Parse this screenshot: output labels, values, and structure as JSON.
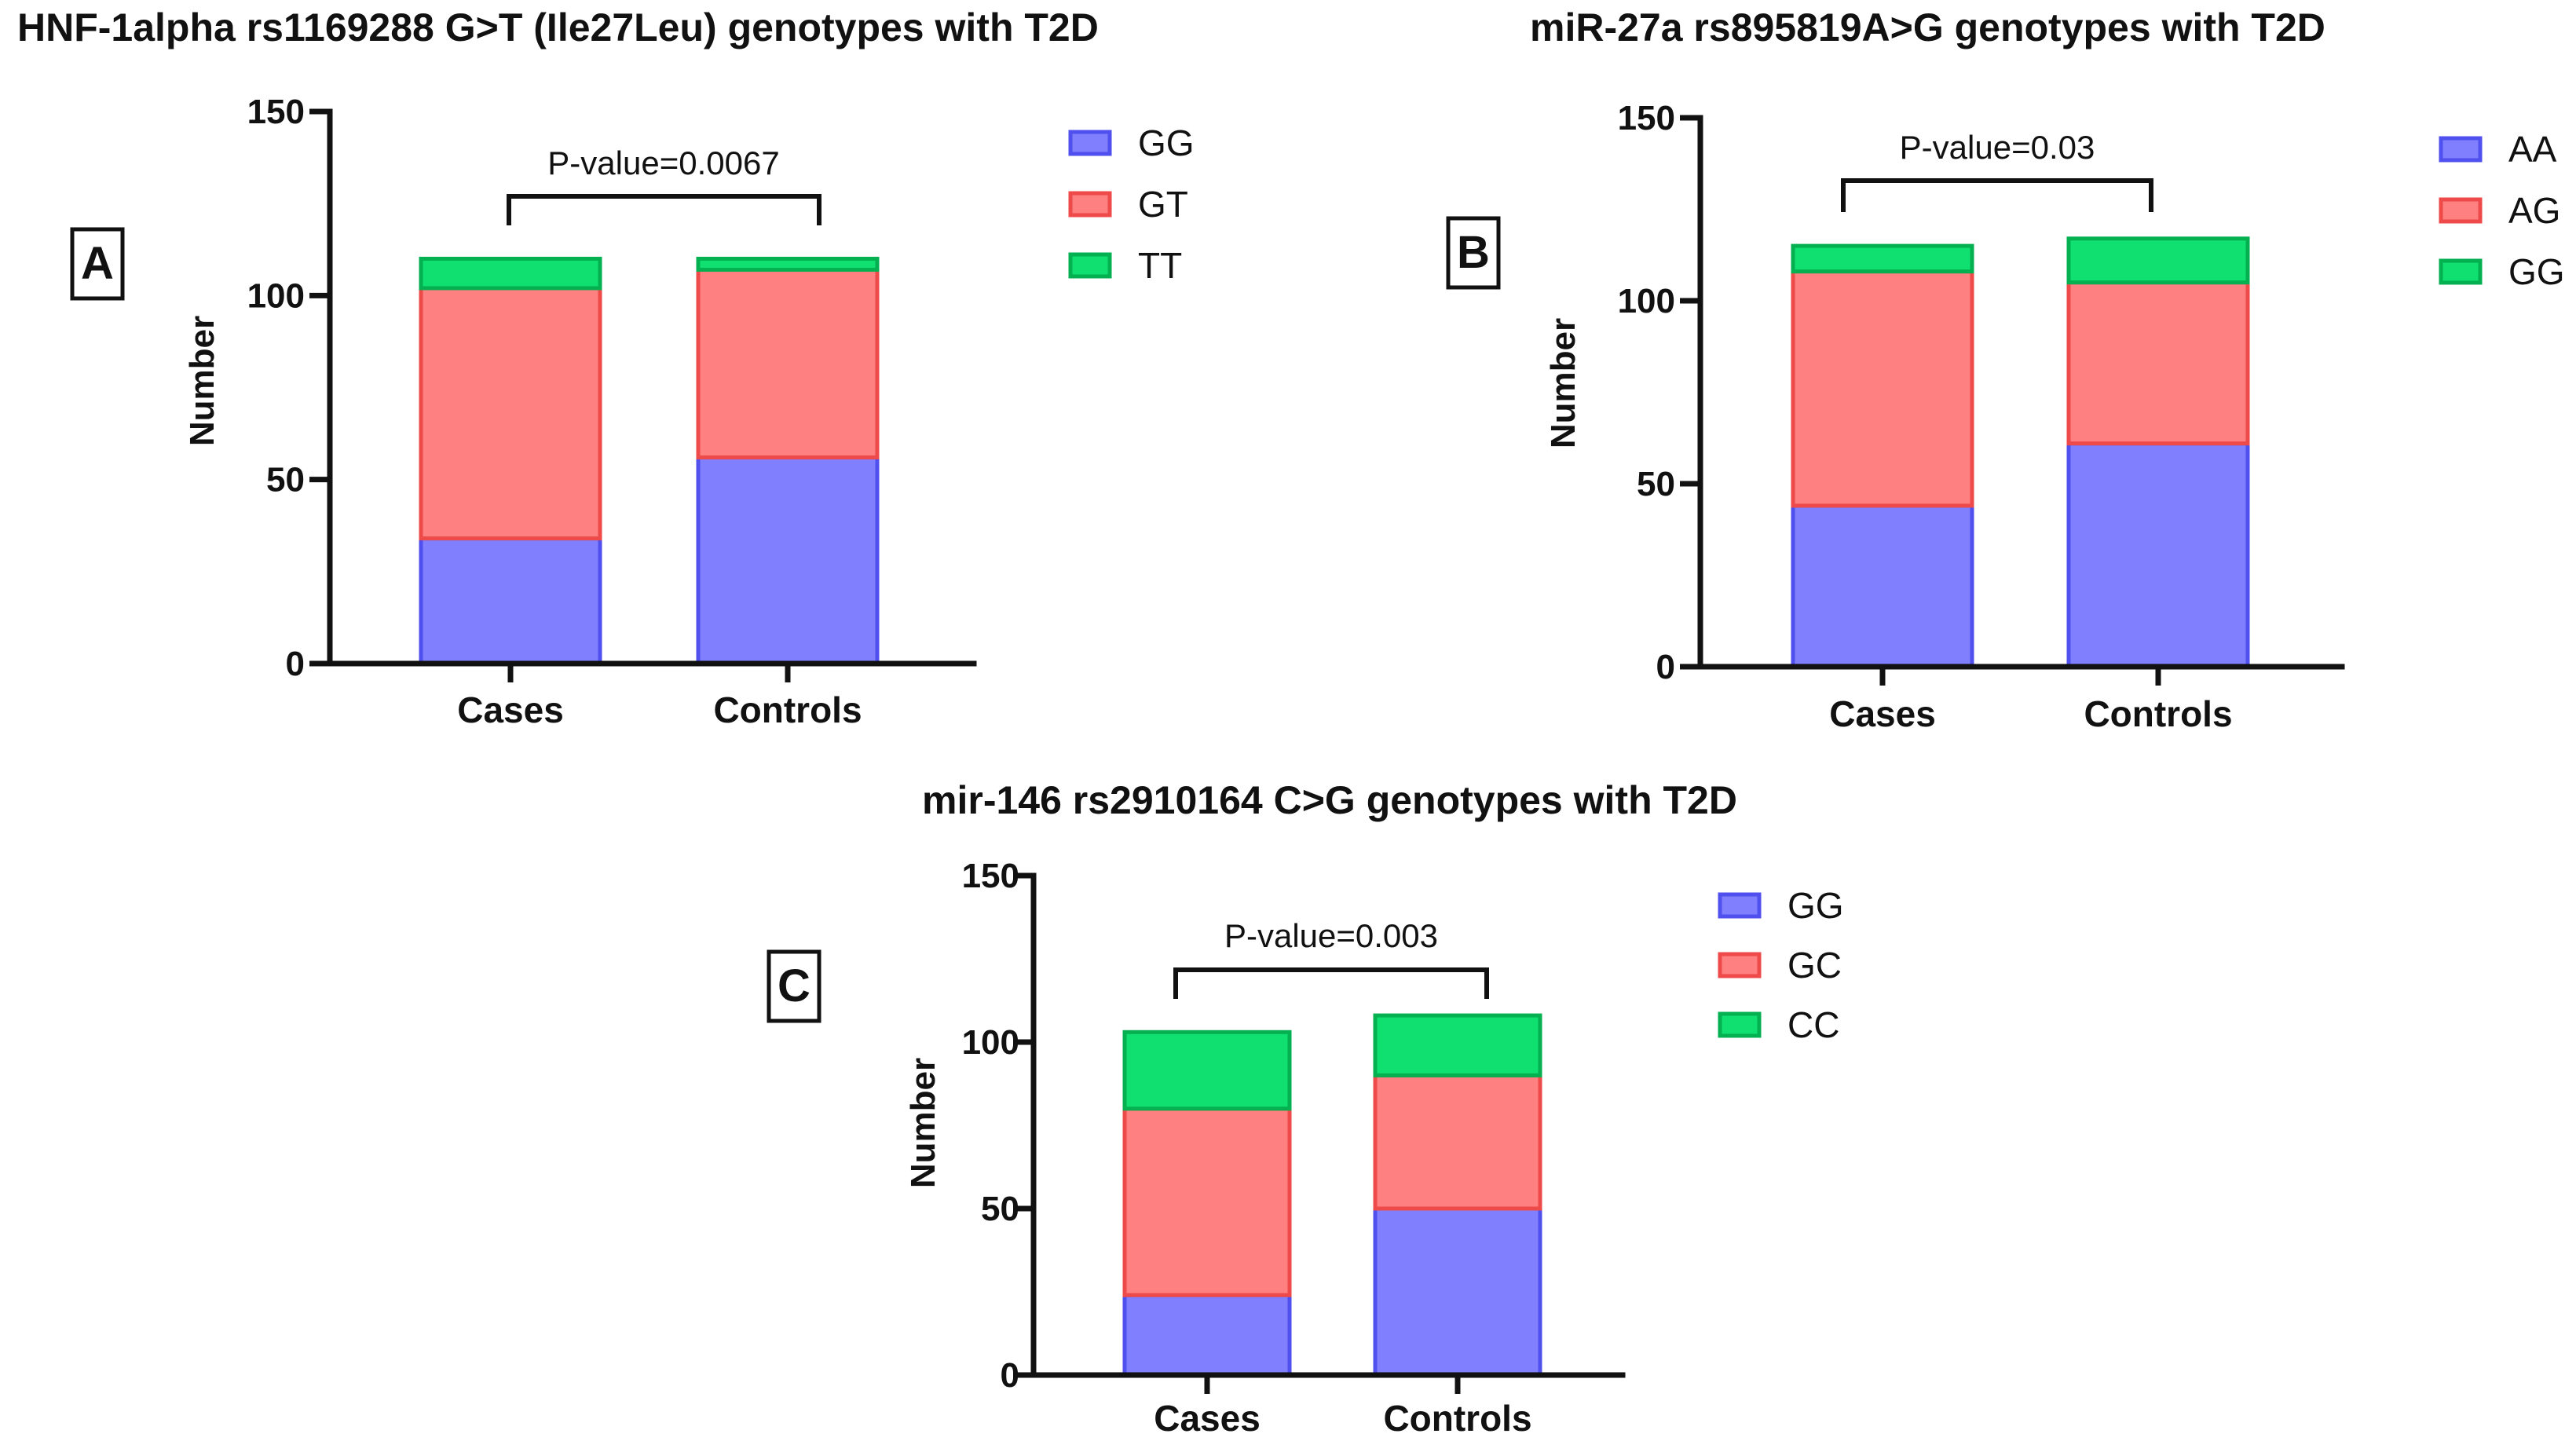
{
  "colors": {
    "blue_fill": "#8080ff",
    "blue_edge": "#5050ee",
    "red_fill": "#ff8080",
    "red_edge": "#ee4a4a",
    "green_fill": "#10e070",
    "green_edge": "#05b050"
  },
  "chart_data": [
    {
      "panel": "A",
      "type": "bar",
      "stacked": true,
      "title": "HNF-1alpha rs1169288 G>T (Ile27Leu) genotypes with T2D",
      "xlabel": "",
      "ylabel": "Number",
      "ylim": [
        0,
        150
      ],
      "yticks": [
        "0",
        "50",
        "100",
        "150"
      ],
      "categories": [
        "Cases",
        "Controls"
      ],
      "series": [
        {
          "name": "GG",
          "color": "blue",
          "values": [
            34,
            56
          ]
        },
        {
          "name": "GT",
          "color": "red",
          "values": [
            68,
            51
          ]
        },
        {
          "name": "TT",
          "color": "green",
          "values": [
            8,
            3
          ]
        }
      ],
      "annotation": "P-value=0.0067",
      "legend_position": "right"
    },
    {
      "panel": "B",
      "type": "bar",
      "stacked": true,
      "title": "miR-27a rs895819A>G genotypes with T2D",
      "xlabel": "",
      "ylabel": "Number",
      "ylim": [
        0,
        150
      ],
      "yticks": [
        "0",
        "50",
        "100",
        "150"
      ],
      "categories": [
        "Cases",
        "Controls"
      ],
      "series": [
        {
          "name": "AA",
          "color": "blue",
          "values": [
            44,
            61
          ]
        },
        {
          "name": "AG",
          "color": "red",
          "values": [
            64,
            44
          ]
        },
        {
          "name": "GG",
          "color": "green",
          "values": [
            7,
            12
          ]
        }
      ],
      "annotation": "P-value=0.03",
      "legend_position": "right"
    },
    {
      "panel": "C",
      "type": "bar",
      "stacked": true,
      "title": "mir-146 rs2910164 C>G genotypes with T2D",
      "xlabel": "",
      "ylabel": "Number",
      "ylim": [
        0,
        150
      ],
      "yticks": [
        "0",
        "50",
        "100",
        "150"
      ],
      "categories": [
        "Cases",
        "Controls"
      ],
      "series": [
        {
          "name": "GG",
          "color": "blue",
          "values": [
            24,
            50
          ]
        },
        {
          "name": "GC",
          "color": "red",
          "values": [
            56,
            40
          ]
        },
        {
          "name": "CC",
          "color": "green",
          "values": [
            23,
            18
          ]
        }
      ],
      "annotation": "P-value=0.003",
      "legend_position": "right"
    }
  ]
}
